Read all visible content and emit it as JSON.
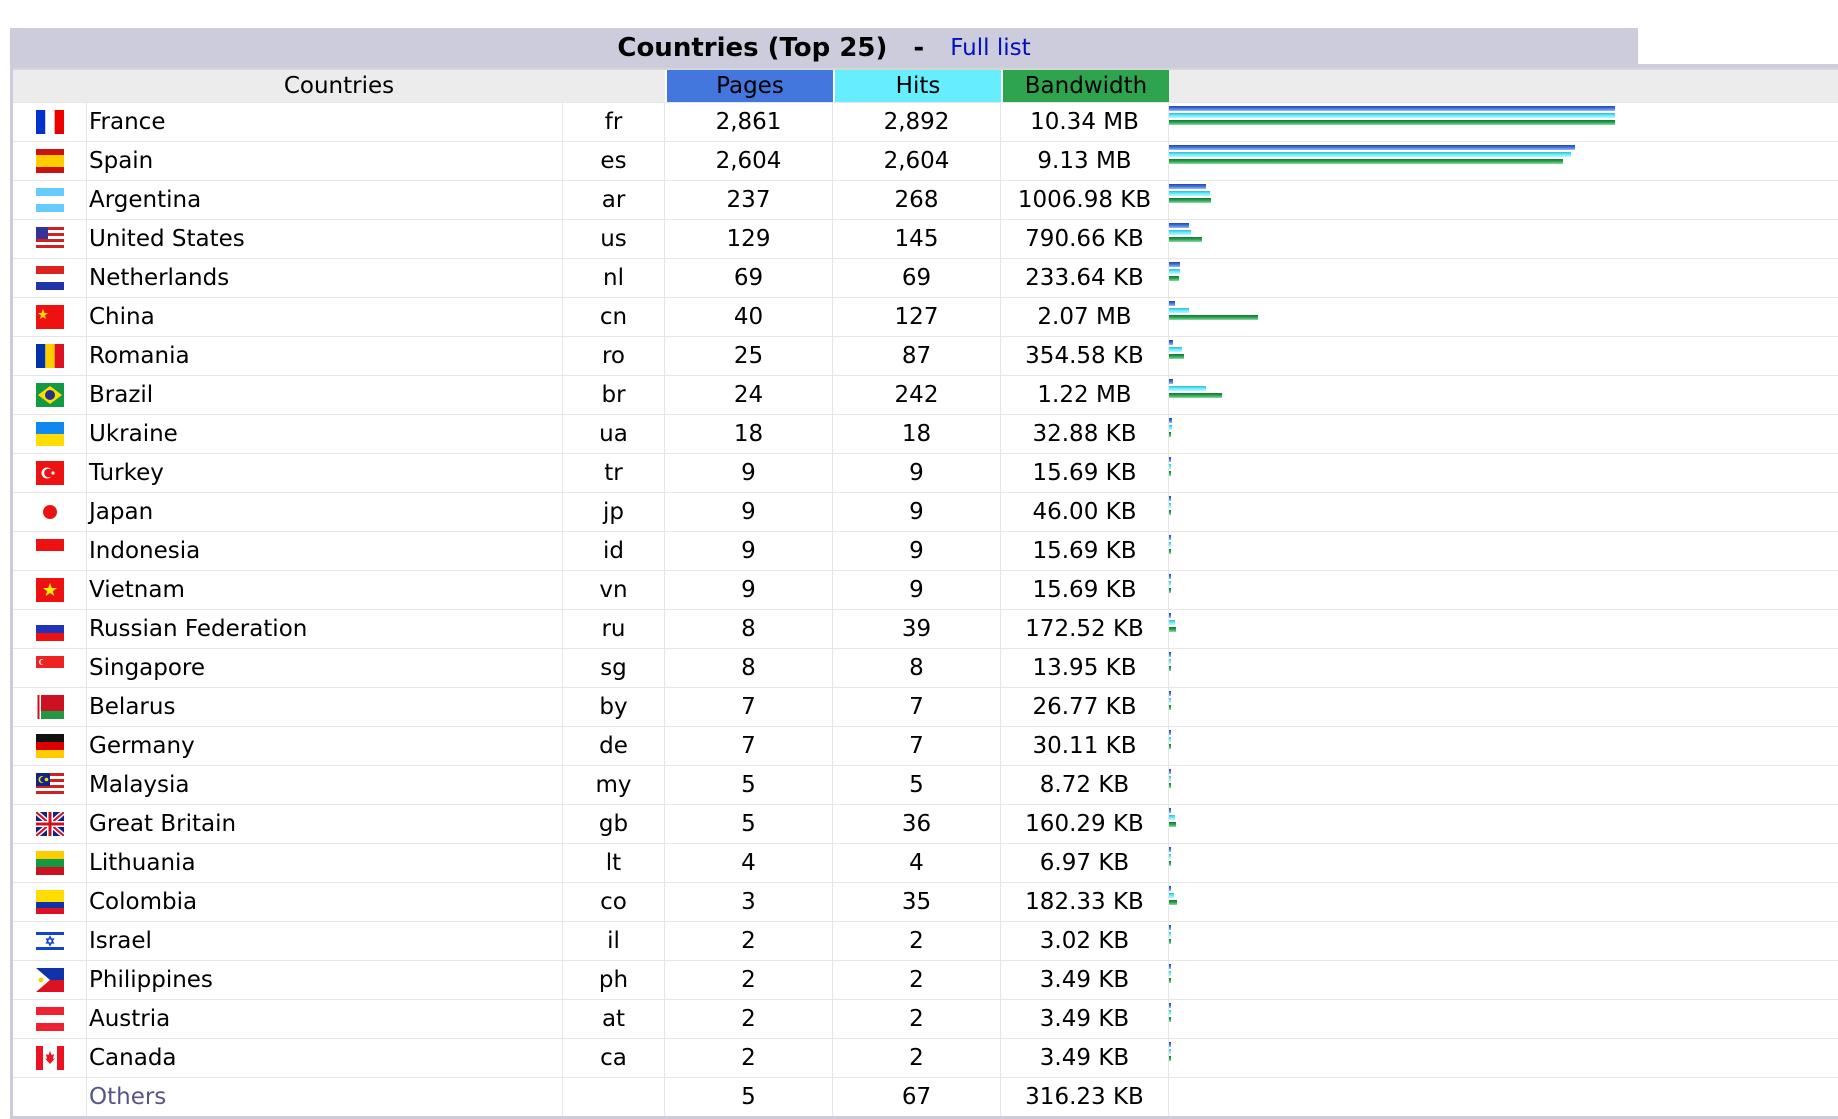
{
  "panel": {
    "title": "Countries (Top 25)",
    "separator": "-",
    "full_list_link": "Full list"
  },
  "columns": {
    "country": "Countries",
    "pages": "Pages",
    "hits": "Hits",
    "bandwidth": "Bandwidth"
  },
  "colors": {
    "pages": "#4477dd",
    "hits": "#66eeff",
    "bandwidth": "#2ea44f",
    "title_bg": "#ccccdd"
  },
  "rows": [
    {
      "flag_icon": "flag-france-icon",
      "name": "France",
      "code": "fr",
      "pages": "2,861",
      "hits": "2,892",
      "bandwidth": "10.34 MB",
      "pages_n": 2861,
      "hits_n": 2892,
      "bw_kb": 10588
    },
    {
      "flag_icon": "flag-spain-icon",
      "name": "Spain",
      "code": "es",
      "pages": "2,604",
      "hits": "2,604",
      "bandwidth": "9.13 MB",
      "pages_n": 2604,
      "hits_n": 2604,
      "bw_kb": 9349
    },
    {
      "flag_icon": "flag-argentina-icon",
      "name": "Argentina",
      "code": "ar",
      "pages": "237",
      "hits": "268",
      "bandwidth": "1006.98 KB",
      "pages_n": 237,
      "hits_n": 268,
      "bw_kb": 1006.98
    },
    {
      "flag_icon": "flag-united-states-icon",
      "name": "United States",
      "code": "us",
      "pages": "129",
      "hits": "145",
      "bandwidth": "790.66 KB",
      "pages_n": 129,
      "hits_n": 145,
      "bw_kb": 790.66
    },
    {
      "flag_icon": "flag-netherlands-icon",
      "name": "Netherlands",
      "code": "nl",
      "pages": "69",
      "hits": "69",
      "bandwidth": "233.64 KB",
      "pages_n": 69,
      "hits_n": 69,
      "bw_kb": 233.64
    },
    {
      "flag_icon": "flag-china-icon",
      "name": "China",
      "code": "cn",
      "pages": "40",
      "hits": "127",
      "bandwidth": "2.07 MB",
      "pages_n": 40,
      "hits_n": 127,
      "bw_kb": 2120
    },
    {
      "flag_icon": "flag-romania-icon",
      "name": "Romania",
      "code": "ro",
      "pages": "25",
      "hits": "87",
      "bandwidth": "354.58 KB",
      "pages_n": 25,
      "hits_n": 87,
      "bw_kb": 354.58
    },
    {
      "flag_icon": "flag-brazil-icon",
      "name": "Brazil",
      "code": "br",
      "pages": "24",
      "hits": "242",
      "bandwidth": "1.22 MB",
      "pages_n": 24,
      "hits_n": 242,
      "bw_kb": 1249
    },
    {
      "flag_icon": "flag-ukraine-icon",
      "name": "Ukraine",
      "code": "ua",
      "pages": "18",
      "hits": "18",
      "bandwidth": "32.88 KB",
      "pages_n": 18,
      "hits_n": 18,
      "bw_kb": 32.88
    },
    {
      "flag_icon": "flag-turkey-icon",
      "name": "Turkey",
      "code": "tr",
      "pages": "9",
      "hits": "9",
      "bandwidth": "15.69 KB",
      "pages_n": 9,
      "hits_n": 9,
      "bw_kb": 15.69
    },
    {
      "flag_icon": "flag-japan-icon",
      "name": "Japan",
      "code": "jp",
      "pages": "9",
      "hits": "9",
      "bandwidth": "46.00 KB",
      "pages_n": 9,
      "hits_n": 9,
      "bw_kb": 46.0
    },
    {
      "flag_icon": "flag-indonesia-icon",
      "name": "Indonesia",
      "code": "id",
      "pages": "9",
      "hits": "9",
      "bandwidth": "15.69 KB",
      "pages_n": 9,
      "hits_n": 9,
      "bw_kb": 15.69
    },
    {
      "flag_icon": "flag-vietnam-icon",
      "name": "Vietnam",
      "code": "vn",
      "pages": "9",
      "hits": "9",
      "bandwidth": "15.69 KB",
      "pages_n": 9,
      "hits_n": 9,
      "bw_kb": 15.69
    },
    {
      "flag_icon": "flag-russia-icon",
      "name": "Russian Federation",
      "code": "ru",
      "pages": "8",
      "hits": "39",
      "bandwidth": "172.52 KB",
      "pages_n": 8,
      "hits_n": 39,
      "bw_kb": 172.52
    },
    {
      "flag_icon": "flag-singapore-icon",
      "name": "Singapore",
      "code": "sg",
      "pages": "8",
      "hits": "8",
      "bandwidth": "13.95 KB",
      "pages_n": 8,
      "hits_n": 8,
      "bw_kb": 13.95
    },
    {
      "flag_icon": "flag-belarus-icon",
      "name": "Belarus",
      "code": "by",
      "pages": "7",
      "hits": "7",
      "bandwidth": "26.77 KB",
      "pages_n": 7,
      "hits_n": 7,
      "bw_kb": 26.77
    },
    {
      "flag_icon": "flag-germany-icon",
      "name": "Germany",
      "code": "de",
      "pages": "7",
      "hits": "7",
      "bandwidth": "30.11 KB",
      "pages_n": 7,
      "hits_n": 7,
      "bw_kb": 30.11
    },
    {
      "flag_icon": "flag-malaysia-icon",
      "name": "Malaysia",
      "code": "my",
      "pages": "5",
      "hits": "5",
      "bandwidth": "8.72 KB",
      "pages_n": 5,
      "hits_n": 5,
      "bw_kb": 8.72
    },
    {
      "flag_icon": "flag-great-britain-icon",
      "name": "Great Britain",
      "code": "gb",
      "pages": "5",
      "hits": "36",
      "bandwidth": "160.29 KB",
      "pages_n": 5,
      "hits_n": 36,
      "bw_kb": 160.29
    },
    {
      "flag_icon": "flag-lithuania-icon",
      "name": "Lithuania",
      "code": "lt",
      "pages": "4",
      "hits": "4",
      "bandwidth": "6.97 KB",
      "pages_n": 4,
      "hits_n": 4,
      "bw_kb": 6.97
    },
    {
      "flag_icon": "flag-colombia-icon",
      "name": "Colombia",
      "code": "co",
      "pages": "3",
      "hits": "35",
      "bandwidth": "182.33 KB",
      "pages_n": 3,
      "hits_n": 35,
      "bw_kb": 182.33
    },
    {
      "flag_icon": "flag-israel-icon",
      "name": "Israel",
      "code": "il",
      "pages": "2",
      "hits": "2",
      "bandwidth": "3.02 KB",
      "pages_n": 2,
      "hits_n": 2,
      "bw_kb": 3.02
    },
    {
      "flag_icon": "flag-philippines-icon",
      "name": "Philippines",
      "code": "ph",
      "pages": "2",
      "hits": "2",
      "bandwidth": "3.49 KB",
      "pages_n": 2,
      "hits_n": 2,
      "bw_kb": 3.49
    },
    {
      "flag_icon": "flag-austria-icon",
      "name": "Austria",
      "code": "at",
      "pages": "2",
      "hits": "2",
      "bandwidth": "3.49 KB",
      "pages_n": 2,
      "hits_n": 2,
      "bw_kb": 3.49
    },
    {
      "flag_icon": "flag-canada-icon",
      "name": "Canada",
      "code": "ca",
      "pages": "2",
      "hits": "2",
      "bandwidth": "3.49 KB",
      "pages_n": 2,
      "hits_n": 2,
      "bw_kb": 3.49
    }
  ],
  "others": {
    "name": "Others",
    "pages": "5",
    "hits": "67",
    "bandwidth": "316.23 KB"
  }
}
